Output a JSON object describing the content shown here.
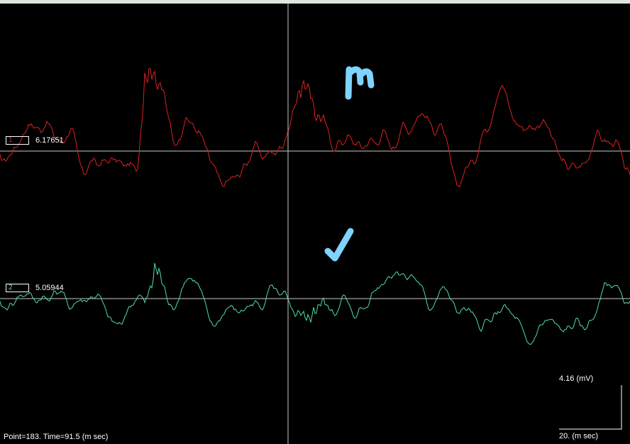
{
  "status": {
    "point_time": "Point=183.  Time=91.5 (m sec)"
  },
  "channels": [
    {
      "id": "1",
      "value": "6.17651",
      "color": "#e02020",
      "baseline_color": "#c8c8c8"
    },
    {
      "id": "2",
      "value": "5.05944",
      "color": "#50e0a0",
      "baseline_color": "#c8c8c8"
    }
  ],
  "scale_bar": {
    "amplitude_label": "4.16 (mV)",
    "time_label": "20. (m sec)"
  },
  "cursor": {
    "point": 183,
    "time_ms": 91.5
  },
  "annotations": [
    {
      "name": "m-mark",
      "glyph": "m",
      "color": "#7fd3ff"
    },
    {
      "name": "check-mark",
      "glyph": "check",
      "color": "#7fd3ff"
    }
  ],
  "colors": {
    "background": "#000000",
    "top_bar": "#dfe6df",
    "cursor_line": "#c8c8c8",
    "annotation": "#7fd3ff"
  }
}
